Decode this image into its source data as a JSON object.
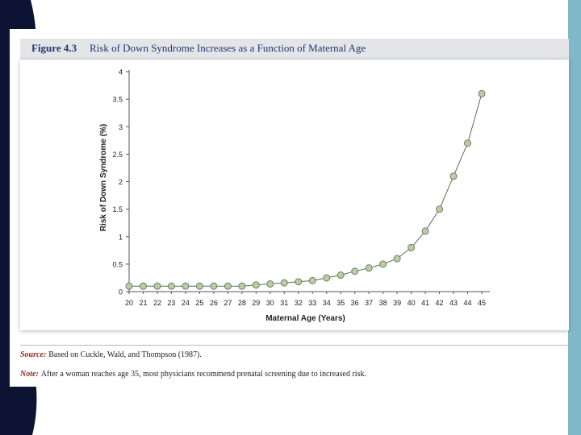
{
  "figure": {
    "number": "Figure 4.3",
    "title": "Risk of Down Syndrome Increases as a Function of Maternal Age"
  },
  "source": {
    "label": "Source:",
    "text": "Based on Cuckle, Wald, and Thompson (1987)."
  },
  "note": {
    "label": "Note:",
    "text": "After a woman reaches age 35, most physicians recommend prenatal screening due to increased risk."
  },
  "colors": {
    "marker_fill": "#b9cda5",
    "marker_stroke": "#6f7f63",
    "line": "#5d6b55",
    "axis": "#555555",
    "right_bar": "#7fb9c9",
    "left_deco": "#0d1333",
    "header_bg": "#e3e5e8",
    "title_text": "#23386f"
  },
  "chart_data": {
    "type": "line",
    "title": "",
    "xlabel": "Maternal Age (Years)",
    "ylabel": "Risk of Down Syndrome (%)",
    "ylim": [
      0,
      4
    ],
    "yticks": [
      "0",
      "0.5",
      "1",
      "1.5",
      "2",
      "2.5",
      "3",
      "3.5",
      "4"
    ],
    "ytick_values": [
      0,
      0.5,
      1,
      1.5,
      2,
      2.5,
      3,
      3.5,
      4
    ],
    "x": [
      20,
      21,
      22,
      23,
      24,
      25,
      26,
      27,
      28,
      29,
      30,
      31,
      32,
      33,
      34,
      35,
      36,
      37,
      38,
      39,
      40,
      41,
      42,
      43,
      44,
      45
    ],
    "xtick_labels": [
      "20",
      "21",
      "22",
      "23",
      "24",
      "25",
      "26",
      "27",
      "28",
      "29",
      "30",
      "31",
      "32",
      "33",
      "34",
      "35",
      "36",
      "37",
      "38",
      "39",
      "40",
      "41",
      "42",
      "43",
      "44",
      "45"
    ],
    "series": [
      {
        "values": [
          0.1,
          0.1,
          0.1,
          0.1,
          0.1,
          0.1,
          0.1,
          0.1,
          0.1,
          0.12,
          0.14,
          0.16,
          0.18,
          0.2,
          0.25,
          0.3,
          0.37,
          0.43,
          0.5,
          0.6,
          0.8,
          1.1,
          1.5,
          2.1,
          2.7,
          3.6
        ]
      }
    ],
    "grid": false,
    "legend": "none"
  }
}
